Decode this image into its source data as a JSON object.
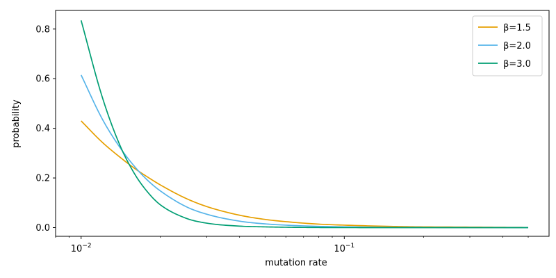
{
  "chart_data": {
    "type": "line",
    "title": "",
    "xlabel": "mutation rate",
    "ylabel": "probability",
    "xscale": "log",
    "xlim": [
      0.008,
      0.6
    ],
    "ylim": [
      -0.035,
      0.875
    ],
    "grid": false,
    "legend_placement": "top-right",
    "x_ticks": [
      {
        "value": 0.01,
        "base": "10",
        "exp": "−2"
      },
      {
        "value": 0.1,
        "base": "10",
        "exp": "−1"
      }
    ],
    "y_ticks": [
      {
        "value": 0.0,
        "label": "0.0"
      },
      {
        "value": 0.2,
        "label": "0.2"
      },
      {
        "value": 0.4,
        "label": "0.4"
      },
      {
        "value": 0.6,
        "label": "0.6"
      },
      {
        "value": 0.8,
        "label": "0.8"
      }
    ],
    "x": [
      0.01,
      0.012,
      0.014,
      0.016,
      0.018,
      0.02,
      0.025,
      0.03,
      0.04,
      0.05,
      0.06,
      0.08,
      0.1,
      0.15,
      0.2,
      0.3,
      0.4,
      0.5
    ],
    "series": [
      {
        "name": "β=1.5",
        "color": "#E69F00",
        "values": [
          0.43,
          0.345,
          0.285,
          0.238,
          0.202,
          0.172,
          0.118,
          0.085,
          0.05,
          0.033,
          0.024,
          0.014,
          0.01,
          0.005,
          0.003,
          0.002,
          0.001,
          0.0005
        ]
      },
      {
        "name": "β=2.0",
        "color": "#56B4E9",
        "values": [
          0.615,
          0.44,
          0.325,
          0.245,
          0.188,
          0.148,
          0.085,
          0.054,
          0.026,
          0.015,
          0.01,
          0.005,
          0.003,
          0.001,
          0.0006,
          0.0002,
          0.0001,
          0.0
        ]
      },
      {
        "name": "β=3.0",
        "color": "#009E73",
        "values": [
          0.835,
          0.53,
          0.335,
          0.215,
          0.14,
          0.092,
          0.038,
          0.018,
          0.006,
          0.003,
          0.0015,
          0.0005,
          0.0002,
          0.0,
          0.0,
          0.0,
          0.0,
          0.0
        ]
      }
    ]
  }
}
